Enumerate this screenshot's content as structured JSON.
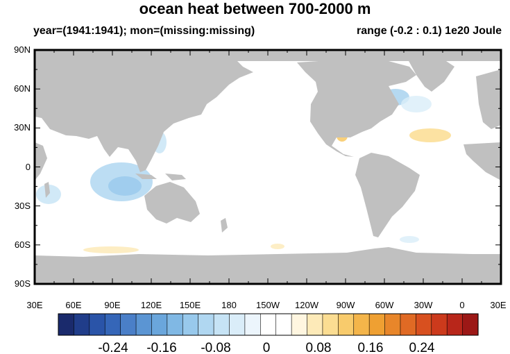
{
  "title": "ocean heat between 700-2000 m",
  "subtitle_left": "year=(1941:1941); mon=(missing:missing)",
  "subtitle_right": "range (-0.2 : 0.1) 1e20 Joule",
  "lat_labels": [
    "90N",
    "60N",
    "30N",
    "0",
    "30S",
    "60S",
    "90S"
  ],
  "lon_labels": [
    "30E",
    "60E",
    "90E",
    "120E",
    "150E",
    "180",
    "150W",
    "120W",
    "90W",
    "60W",
    "30W",
    "0",
    "30E"
  ],
  "colorbar": {
    "labels": [
      "-0.24",
      "-0.16",
      "-0.08",
      "0",
      "0.08",
      "0.16",
      "0.24"
    ],
    "colors": [
      "#1a2a6c",
      "#203d8a",
      "#2a54a8",
      "#3566b8",
      "#4a7fc8",
      "#5b95d3",
      "#6aa6dc",
      "#80b8e4",
      "#98c9ec",
      "#b0d7f1",
      "#c6e3f5",
      "#daedf9",
      "#ecf5fc",
      "#ffffff",
      "#ffffff",
      "#fff6e0",
      "#fdeab8",
      "#fbdd92",
      "#f8cb6c",
      "#f4b54a",
      "#efa032",
      "#e8862a",
      "#e06a24",
      "#d8501f",
      "#cc3a1c",
      "#b8261a",
      "#9c1816"
    ]
  }
}
